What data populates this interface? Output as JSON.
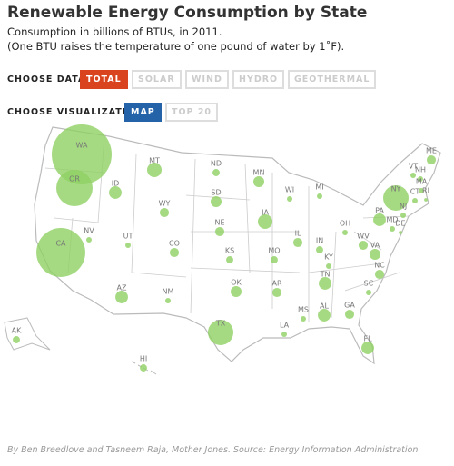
{
  "header": {
    "title": "Renewable Energy Consumption by State",
    "subtitle": "Consumption in billions of BTUs, in 2011.",
    "note": "(One BTU raises the temperature of one pound of water by 1˚F)."
  },
  "controls": {
    "data_label": "CHOOSE DATA:",
    "data_options": [
      "TOTAL",
      "SOLAR",
      "WIND",
      "HYDRO",
      "GEOTHERMAL"
    ],
    "viz_label": "CHOOSE VISUALIZATION:",
    "viz_options": [
      "MAP",
      "TOP 20"
    ]
  },
  "map": {
    "color": "#8fd163",
    "states": [
      {
        "label": "WA",
        "value": 900000
      },
      {
        "label": "OR",
        "value": 330000
      },
      {
        "label": "CA",
        "value": 600000
      },
      {
        "label": "ID",
        "value": 40000
      },
      {
        "label": "MT",
        "value": 53000
      },
      {
        "label": "WY",
        "value": 21000
      },
      {
        "label": "NV",
        "value": 7400
      },
      {
        "label": "UT",
        "value": 7400
      },
      {
        "label": "CO",
        "value": 21000
      },
      {
        "label": "AZ",
        "value": 40000
      },
      {
        "label": "NM",
        "value": 7400
      },
      {
        "label": "ND",
        "value": 13000
      },
      {
        "label": "SD",
        "value": 30000
      },
      {
        "label": "NE",
        "value": 21000
      },
      {
        "label": "KS",
        "value": 13000
      },
      {
        "label": "OK",
        "value": 30000
      },
      {
        "label": "TX",
        "value": 162000
      },
      {
        "label": "MN",
        "value": 30000
      },
      {
        "label": "IA",
        "value": 53000
      },
      {
        "label": "MO",
        "value": 13000
      },
      {
        "label": "AR",
        "value": 21000
      },
      {
        "label": "LA",
        "value": 7400
      },
      {
        "label": "WI",
        "value": 7400
      },
      {
        "label": "IL",
        "value": 21000
      },
      {
        "label": "MI",
        "value": 7400
      },
      {
        "label": "IN",
        "value": 13000
      },
      {
        "label": "OH",
        "value": 7400
      },
      {
        "label": "KY",
        "value": 7400
      },
      {
        "label": "TN",
        "value": 40000
      },
      {
        "label": "MS",
        "value": 7400
      },
      {
        "label": "AL",
        "value": 40000
      },
      {
        "label": "GA",
        "value": 21000
      },
      {
        "label": "FL",
        "value": 40000
      },
      {
        "label": "SC",
        "value": 7400
      },
      {
        "label": "NC",
        "value": 21000
      },
      {
        "label": "VA",
        "value": 30000
      },
      {
        "label": "WV",
        "value": 21000
      },
      {
        "label": "PA",
        "value": 40000
      },
      {
        "label": "NY",
        "value": 162000
      },
      {
        "label": "ME",
        "value": 21000
      },
      {
        "label": "VT",
        "value": 7400
      },
      {
        "label": "NH",
        "value": 7400
      },
      {
        "label": "MA",
        "value": 7400
      },
      {
        "label": "CT",
        "value": 7400
      },
      {
        "label": "RI",
        "value": 3000
      },
      {
        "label": "NJ",
        "value": 7400
      },
      {
        "label": "MD",
        "value": 7400
      },
      {
        "label": "DE",
        "value": 3000
      },
      {
        "label": "AK",
        "value": 13000
      },
      {
        "label": "HI",
        "value": 13000
      }
    ]
  },
  "footer": {
    "credit": "By Ben Breedlove and Tasneem Raja, Mother Jones. Source: Energy Information Administration."
  }
}
